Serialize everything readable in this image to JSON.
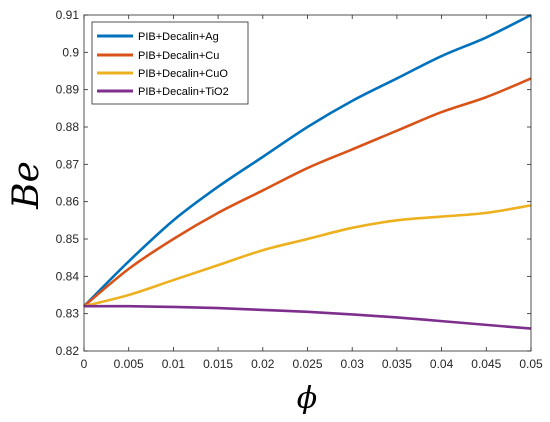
{
  "chart_data": {
    "type": "line",
    "xlabel": "ϕ",
    "ylabel": "Be",
    "xlim": [
      0,
      0.05
    ],
    "ylim": [
      0.82,
      0.91
    ],
    "x_ticks": [
      0,
      0.005,
      0.01,
      0.015,
      0.02,
      0.025,
      0.03,
      0.035,
      0.04,
      0.045,
      0.05
    ],
    "x_tick_labels": [
      "0",
      "0.005",
      "0.01",
      "0.015",
      "0.02",
      "0.025",
      "0.03",
      "0.035",
      "0.04",
      "0.045",
      "0.05"
    ],
    "y_ticks": [
      0.82,
      0.83,
      0.84,
      0.85,
      0.86,
      0.87,
      0.88,
      0.89,
      0.9,
      0.91
    ],
    "y_tick_labels": [
      "0.82",
      "0.83",
      "0.84",
      "0.85",
      "0.86",
      "0.87",
      "0.88",
      "0.89",
      "0.9",
      "0.91"
    ],
    "grid": false,
    "legend_position": "top-left",
    "x": [
      0,
      0.005,
      0.01,
      0.015,
      0.02,
      0.025,
      0.03,
      0.035,
      0.04,
      0.045,
      0.05
    ],
    "series": [
      {
        "name": "PIB+Decalin+Ag",
        "color": "#0072BD",
        "values": [
          0.832,
          0.844,
          0.855,
          0.864,
          0.872,
          0.88,
          0.887,
          0.893,
          0.899,
          0.904,
          0.91
        ]
      },
      {
        "name": "PIB+Decalin+Cu",
        "color": "#D95319",
        "values": [
          0.832,
          0.842,
          0.85,
          0.857,
          0.863,
          0.869,
          0.874,
          0.879,
          0.884,
          0.888,
          0.893
        ]
      },
      {
        "name": "PIB+Decalin+CuO",
        "color": "#EDB120",
        "values": [
          0.832,
          0.835,
          0.839,
          0.843,
          0.847,
          0.85,
          0.853,
          0.855,
          0.856,
          0.857,
          0.859
        ]
      },
      {
        "name": "PIB+Decalin+TiO2",
        "color": "#7E2F8E",
        "values": [
          0.832,
          0.832,
          0.8318,
          0.8315,
          0.831,
          0.8305,
          0.8298,
          0.829,
          0.828,
          0.827,
          0.826
        ]
      }
    ]
  }
}
